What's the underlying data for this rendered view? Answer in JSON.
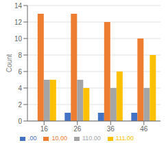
{
  "chart_data": {
    "type": "bar",
    "categories": [
      "16",
      "26",
      "36",
      "46"
    ],
    "series": [
      {
        "name": ".00",
        "color": "#4472C4",
        "values": [
          0,
          1,
          1,
          1
        ]
      },
      {
        "name": "10.00",
        "color": "#ED7D31",
        "values": [
          13,
          13,
          12,
          10
        ]
      },
      {
        "name": "110.00",
        "color": "#A5A5A5",
        "values": [
          5,
          5,
          4,
          4
        ]
      },
      {
        "name": "111.00",
        "color": "#FFC000",
        "values": [
          5,
          4,
          6,
          8
        ]
      }
    ],
    "ylabel": "Count",
    "ylim": [
      0,
      14
    ],
    "yticks": [
      0,
      2,
      4,
      6,
      8,
      10,
      12,
      14
    ],
    "grid": true,
    "legend": "bottom"
  }
}
